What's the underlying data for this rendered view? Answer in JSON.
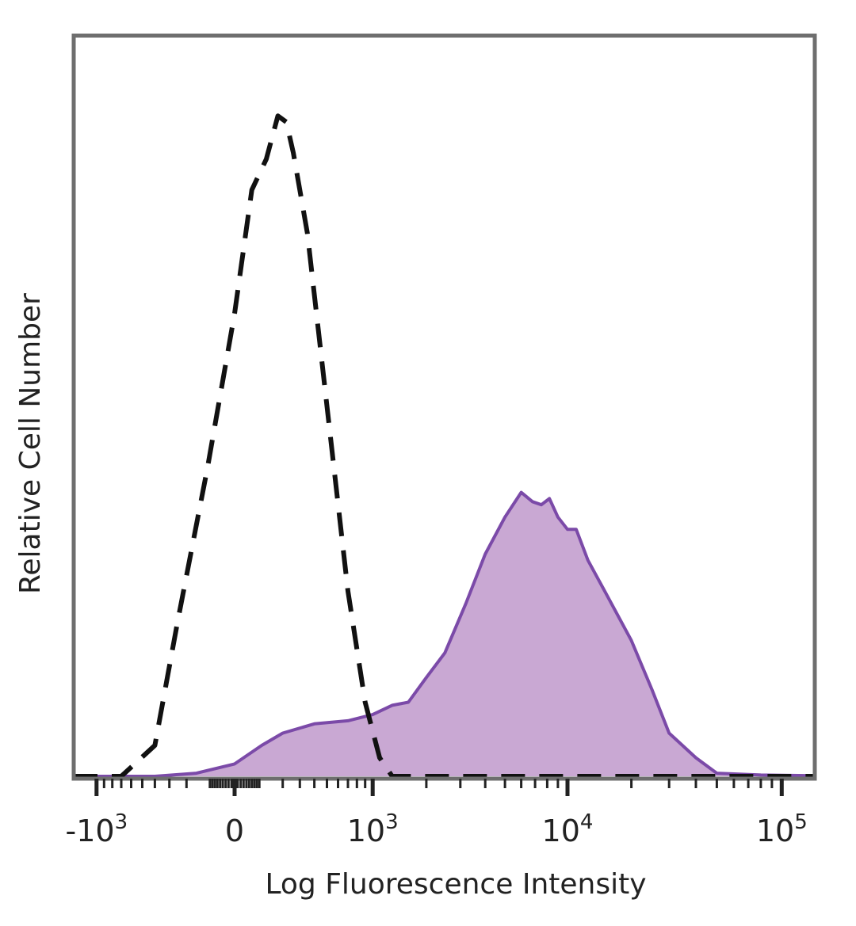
{
  "chart_data": {
    "type": "area",
    "title": "",
    "xlabel": "Log Fluorescence Intensity",
    "ylabel": "Relative Cell Number",
    "x_scale": "biexponential",
    "xlim": [
      -1500,
      200000
    ],
    "ylim": [
      0,
      1.2
    ],
    "grid": false,
    "legend": "none",
    "x_ticks": [
      {
        "value": -1000,
        "base": "-10",
        "exp": "3"
      },
      {
        "value": 0,
        "base": "0",
        "exp": ""
      },
      {
        "value": 1000,
        "base": "10",
        "exp": "3"
      },
      {
        "value": 10000,
        "base": "10",
        "exp": "4"
      },
      {
        "value": 100000,
        "base": "10",
        "exp": "5"
      }
    ],
    "series": [
      {
        "style": "dashed",
        "color": "#111111",
        "points": [
          [
            -1500,
            0.0
          ],
          [
            -700,
            0.0
          ],
          [
            -400,
            0.05
          ],
          [
            -250,
            0.25
          ],
          [
            -100,
            0.5
          ],
          [
            0,
            0.75
          ],
          [
            60,
            0.95
          ],
          [
            120,
            1.0
          ],
          [
            175,
            1.07
          ],
          [
            220,
            1.06
          ],
          [
            260,
            1.01
          ],
          [
            350,
            0.88
          ],
          [
            500,
            0.6
          ],
          [
            700,
            0.3
          ],
          [
            900,
            0.12
          ],
          [
            1100,
            0.03
          ],
          [
            1300,
            0.0
          ],
          [
            200000,
            0.0
          ]
        ]
      },
      {
        "style": "filled",
        "color": "#7b4aa8",
        "fill": "#c9a8d3",
        "points": [
          [
            -1500,
            0.0
          ],
          [
            -400,
            0.0
          ],
          [
            -150,
            0.005
          ],
          [
            0,
            0.02
          ],
          [
            100,
            0.05
          ],
          [
            200,
            0.07
          ],
          [
            400,
            0.085
          ],
          [
            700,
            0.09
          ],
          [
            1000,
            0.1
          ],
          [
            1300,
            0.115
          ],
          [
            1600,
            0.12
          ],
          [
            2000,
            0.16
          ],
          [
            2500,
            0.2
          ],
          [
            3200,
            0.28
          ],
          [
            4000,
            0.36
          ],
          [
            5000,
            0.42
          ],
          [
            6000,
            0.46
          ],
          [
            6800,
            0.445
          ],
          [
            7500,
            0.44
          ],
          [
            8200,
            0.45
          ],
          [
            9000,
            0.42
          ],
          [
            10000,
            0.4
          ],
          [
            11000,
            0.4
          ],
          [
            12500,
            0.35
          ],
          [
            15000,
            0.3
          ],
          [
            20000,
            0.22
          ],
          [
            25000,
            0.14
          ],
          [
            30000,
            0.07
          ],
          [
            40000,
            0.03
          ],
          [
            50000,
            0.005
          ],
          [
            80000,
            0.002
          ],
          [
            150000,
            0.001
          ]
        ]
      }
    ]
  }
}
